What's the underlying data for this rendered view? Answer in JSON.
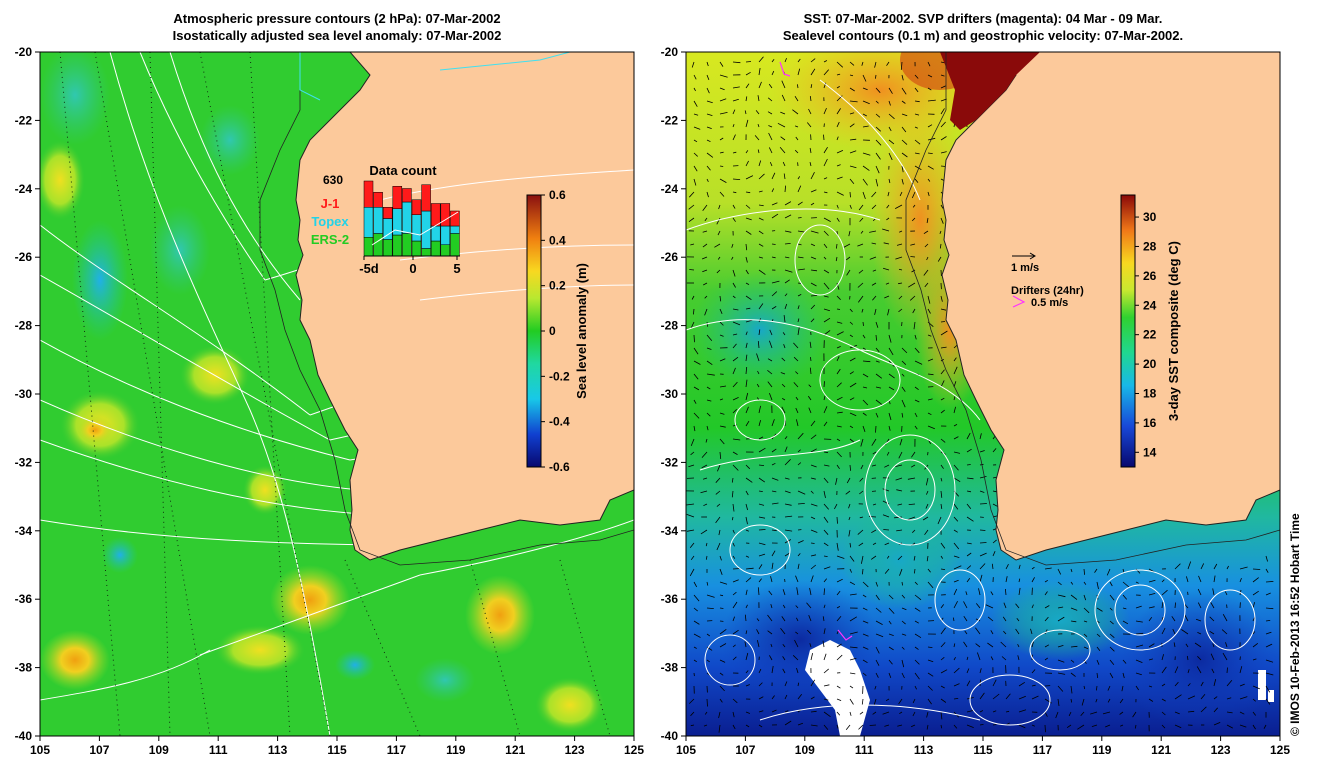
{
  "left_panel": {
    "title_line1": "Atmospheric pressure contours (2 hPa): 07-Mar-2002",
    "title_line2": "Isostatically adjusted sea level anomaly: 07-Mar-2002",
    "colorbar": {
      "label": "Sea level anomaly (m)",
      "ticks": [
        "0.6",
        "0.4",
        "0.2",
        "0",
        "-0.2",
        "-0.4",
        "-0.6"
      ],
      "range": [
        -0.6,
        0.6
      ]
    },
    "inset": {
      "title": "Data count",
      "count": "630",
      "missions": [
        {
          "name": "J-1",
          "color": "#ff1a1a"
        },
        {
          "name": "Topex",
          "color": "#22d3e8"
        },
        {
          "name": "ERS-2",
          "color": "#22cc22"
        }
      ],
      "xticks": [
        "-5d",
        "0",
        "5"
      ],
      "bars": [
        {
          "green": 0.25,
          "cyan": 0.4,
          "red": 0.35
        },
        {
          "green": 0.3,
          "cyan": 0.35,
          "red": 0.2
        },
        {
          "green": 0.22,
          "cyan": 0.28,
          "red": 0.15
        },
        {
          "green": 0.28,
          "cyan": 0.35,
          "red": 0.3
        },
        {
          "green": 0.3,
          "cyan": 0.42,
          "red": 0.18
        },
        {
          "green": 0.2,
          "cyan": 0.35,
          "red": 0.2
        },
        {
          "green": 0.1,
          "cyan": 0.5,
          "red": 0.35
        },
        {
          "green": 0.2,
          "cyan": 0.2,
          "red": 0.3
        },
        {
          "green": 0.15,
          "cyan": 0.25,
          "red": 0.3
        },
        {
          "green": 0.3,
          "cyan": 0.1,
          "red": 0.2
        }
      ]
    }
  },
  "right_panel": {
    "title_line1": "SST: 07-Mar-2002. SVP drifters (magenta): 04 Mar - 09 Mar.",
    "title_line2": "Sealevel contours (0.1 m) and geostrophic velocity: 07-Mar-2002.",
    "colorbar": {
      "label": "3-day SST composite (deg C)",
      "ticks": [
        "30",
        "28",
        "26",
        "24",
        "22",
        "20",
        "18",
        "16",
        "14"
      ],
      "range": [
        13,
        31.5
      ]
    },
    "legend": {
      "velocity_label": "1 m/s",
      "drifters_title": "Drifters (24hr)",
      "drifter_label": "0.5 m/s",
      "drifter_color": "#ff33ff"
    }
  },
  "axes": {
    "lon_ticks": [
      "105",
      "107",
      "109",
      "111",
      "113",
      "115",
      "117",
      "119",
      "121",
      "123",
      "125"
    ],
    "lat_ticks": [
      "-20",
      "-22",
      "-24",
      "-26",
      "-28",
      "-30",
      "-32",
      "-34",
      "-36",
      "-38",
      "-40"
    ]
  },
  "colors": {
    "land": "#fcc99b",
    "ocean_green": "#2ed12e"
  },
  "credit": "© IMOS 10-Feb-2013 16:52 Hobart Time"
}
